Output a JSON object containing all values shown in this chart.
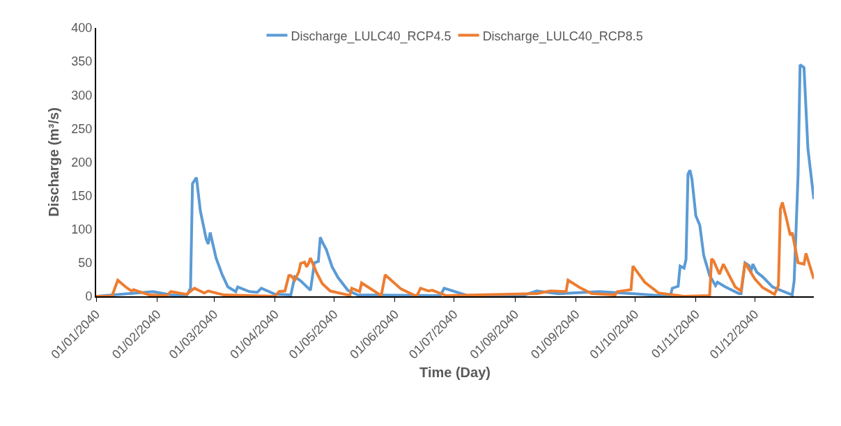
{
  "chart_data": {
    "type": "line",
    "xlabel": "Time (Day)",
    "ylabel": "Discharge (m³/s)",
    "xlim": [
      "2040-01-01",
      "2040-12-31"
    ],
    "xticks": [
      {
        "value": "2040-01-01",
        "label": "01/01/2040"
      },
      {
        "value": "2040-02-01",
        "label": "01/02/2040"
      },
      {
        "value": "2040-03-01",
        "label": "01/03/2040"
      },
      {
        "value": "2040-04-01",
        "label": "01/04/2040"
      },
      {
        "value": "2040-05-01",
        "label": "01/05/2040"
      },
      {
        "value": "2040-06-01",
        "label": "01/06/2040"
      },
      {
        "value": "2040-07-01",
        "label": "01/07/2040"
      },
      {
        "value": "2040-08-01",
        "label": "01/08/2040"
      },
      {
        "value": "2040-09-01",
        "label": "01/09/2040"
      },
      {
        "value": "2040-10-01",
        "label": "01/10/2040"
      },
      {
        "value": "2040-11-01",
        "label": "01/11/2040"
      },
      {
        "value": "2040-12-01",
        "label": "01/12/2040"
      }
    ],
    "ylim": [
      0,
      400
    ],
    "yticks": [
      0,
      50,
      100,
      150,
      200,
      250,
      300,
      350,
      400
    ],
    "grid": false,
    "legend": "top",
    "marker": "none",
    "line_style": "solid",
    "series": [
      {
        "name": "Discharge_LULC40_RCP4.5",
        "color": "#5b9bd5",
        "x": [
          "2040-01-01",
          "2040-01-30",
          "2040-02-08",
          "2040-02-16",
          "2040-02-18",
          "2040-02-19",
          "2040-02-21",
          "2040-02-23",
          "2040-02-26",
          "2040-02-27",
          "2040-02-28",
          "2040-03-02",
          "2040-03-05",
          "2040-03-08",
          "2040-03-12",
          "2040-03-13",
          "2040-03-19",
          "2040-03-23",
          "2040-03-25",
          "2040-04-01",
          "2040-04-09",
          "2040-04-11",
          "2040-04-14",
          "2040-04-19",
          "2040-04-21",
          "2040-04-23",
          "2040-04-24",
          "2040-04-25",
          "2040-04-27",
          "2040-04-30",
          "2040-05-03",
          "2040-05-08",
          "2040-05-13",
          "2040-06-24",
          "2040-06-26",
          "2040-07-09",
          "2040-08-06",
          "2040-08-12",
          "2040-08-23",
          "2040-09-13",
          "2040-09-30",
          "2040-10-19",
          "2040-10-20",
          "2040-10-23",
          "2040-10-24",
          "2040-10-26",
          "2040-10-27",
          "2040-10-28",
          "2040-10-29",
          "2040-10-30",
          "2040-11-01",
          "2040-11-03",
          "2040-11-05",
          "2040-11-08",
          "2040-11-11",
          "2040-11-12",
          "2040-11-16",
          "2040-11-23",
          "2040-11-24",
          "2040-11-26",
          "2040-11-28",
          "2040-11-29",
          "2040-11-30",
          "2040-12-02",
          "2040-12-05",
          "2040-12-10",
          "2040-12-20",
          "2040-12-21",
          "2040-12-23",
          "2040-12-24",
          "2040-12-26",
          "2040-12-28",
          "2040-12-31"
        ],
        "values": [
          0,
          7,
          2,
          1,
          12,
          168,
          177,
          127,
          85,
          78,
          95,
          57,
          33,
          14,
          7,
          14,
          7,
          6,
          12,
          3,
          2,
          29,
          23,
          9,
          50,
          52,
          88,
          81,
          70,
          44,
          28,
          9,
          2,
          1,
          12,
          0,
          2,
          8,
          4,
          7,
          4,
          0,
          12,
          15,
          45,
          42,
          55,
          182,
          188,
          175,
          120,
          106,
          61,
          31,
          16,
          21,
          14,
          4,
          4,
          50,
          46,
          37,
          48,
          36,
          29,
          14,
          2,
          23,
          182,
          345,
          341,
          220,
          145
        ]
      },
      {
        "name": "Discharge_LULC40_RCP8.5",
        "color": "#ed7d31",
        "x": [
          "2040-01-01",
          "2040-01-09",
          "2040-01-12",
          "2040-01-16",
          "2040-01-19",
          "2040-01-20",
          "2040-01-28",
          "2040-02-06",
          "2040-02-08",
          "2040-02-16",
          "2040-02-20",
          "2040-02-25",
          "2040-02-27",
          "2040-03-06",
          "2040-04-01",
          "2040-04-03",
          "2040-04-06",
          "2040-04-08",
          "2040-04-09",
          "2040-04-11",
          "2040-04-13",
          "2040-04-14",
          "2040-04-16",
          "2040-04-17",
          "2040-04-18",
          "2040-04-19",
          "2040-04-22",
          "2040-04-25",
          "2040-04-29",
          "2040-05-08",
          "2040-05-09",
          "2040-05-10",
          "2040-05-14",
          "2040-05-15",
          "2040-05-25",
          "2040-05-27",
          "2040-06-04",
          "2040-06-12",
          "2040-06-14",
          "2040-06-18",
          "2040-06-20",
          "2040-06-27",
          "2040-08-12",
          "2040-08-19",
          "2040-08-27",
          "2040-08-28",
          "2040-09-03",
          "2040-09-09",
          "2040-09-21",
          "2040-09-22",
          "2040-09-29",
          "2040-09-30",
          "2040-10-06",
          "2040-10-13",
          "2040-10-26",
          "2040-11-08",
          "2040-11-09",
          "2040-11-10",
          "2040-11-13",
          "2040-11-15",
          "2040-11-21",
          "2040-11-24",
          "2040-11-26",
          "2040-12-01",
          "2040-12-05",
          "2040-12-11",
          "2040-12-13",
          "2040-12-14",
          "2040-12-15",
          "2040-12-17",
          "2040-12-19",
          "2040-12-20",
          "2040-12-23",
          "2040-12-26",
          "2040-12-27",
          "2040-12-31"
        ],
        "values": [
          0,
          0,
          24,
          14,
          8,
          10,
          2,
          1,
          7,
          3,
          12,
          5,
          8,
          2,
          0,
          7,
          8,
          31,
          31,
          24,
          36,
          49,
          51,
          44,
          49,
          57,
          36,
          19,
          8,
          2,
          1,
          12,
          7,
          20,
          1,
          32,
          11,
          0,
          12,
          8,
          9,
          1,
          4,
          8,
          7,
          24,
          13,
          4,
          2,
          7,
          10,
          45,
          21,
          5,
          0,
          1,
          56,
          53,
          33,
          48,
          14,
          8,
          50,
          26,
          13,
          3,
          16,
          130,
          140,
          117,
          91,
          95,
          50,
          48,
          64,
          26
        ]
      }
    ]
  }
}
